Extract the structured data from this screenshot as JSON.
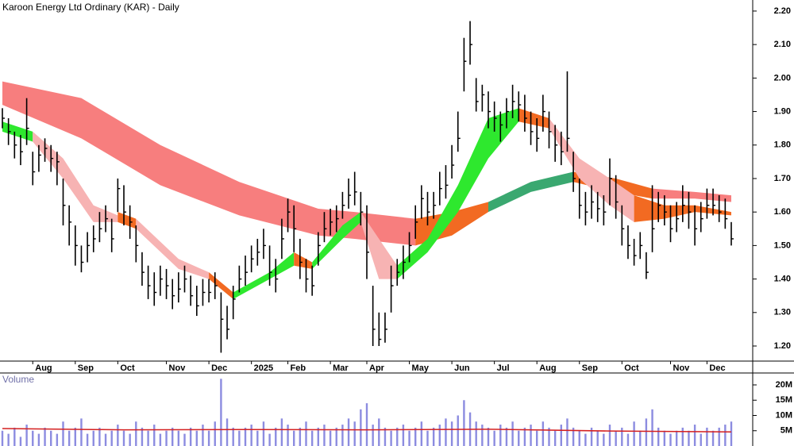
{
  "chart_data": {
    "type": "ohlc",
    "title": "Karoon Energy Ltd Ordinary (KAR) - Daily",
    "categories": [
      null,
      null,
      null,
      null,
      null,
      "Aug",
      null,
      null,
      null,
      null,
      null,
      null,
      "Sep",
      null,
      null,
      null,
      null,
      null,
      null,
      "Oct",
      null,
      null,
      null,
      null,
      null,
      null,
      null,
      "Nov",
      null,
      null,
      null,
      null,
      null,
      null,
      "Dec",
      null,
      null,
      null,
      null,
      null,
      null,
      "2025",
      null,
      null,
      null,
      null,
      null,
      "Feb",
      null,
      null,
      null,
      null,
      null,
      null,
      "Mar",
      null,
      null,
      null,
      null,
      null,
      "Apr",
      null,
      null,
      null,
      null,
      null,
      null,
      "May",
      null,
      null,
      null,
      null,
      null,
      null,
      "Jun",
      null,
      null,
      null,
      null,
      null,
      null,
      "Jul",
      null,
      null,
      null,
      null,
      null,
      null,
      "Aug",
      null,
      null,
      null,
      null,
      null,
      null,
      "Sep",
      null,
      null,
      null,
      null,
      null,
      null,
      "Oct",
      null,
      null,
      null,
      null,
      null,
      null,
      null,
      "Nov",
      null,
      null,
      null,
      null,
      null,
      "Dec",
      null,
      null,
      null,
      null
    ],
    "close": [
      1.88,
      1.84,
      1.8,
      1.78,
      1.85,
      1.72,
      1.77,
      1.79,
      1.76,
      1.75,
      1.62,
      1.57,
      1.5,
      1.45,
      1.5,
      1.52,
      1.55,
      1.58,
      1.52,
      1.67,
      1.6,
      1.57,
      1.5,
      1.42,
      1.38,
      1.36,
      1.4,
      1.38,
      1.35,
      1.37,
      1.4,
      1.35,
      1.32,
      1.36,
      1.36,
      1.38,
      1.28,
      1.25,
      1.34,
      1.4,
      1.42,
      1.46,
      1.48,
      1.5,
      1.42,
      1.4,
      1.52,
      1.6,
      1.55,
      1.45,
      1.4,
      1.38,
      1.5,
      1.55,
      1.57,
      1.58,
      1.62,
      1.65,
      1.66,
      1.6,
      1.48,
      1.25,
      1.22,
      1.25,
      1.38,
      1.42,
      1.45,
      1.5,
      1.57,
      1.64,
      1.6,
      1.62,
      1.67,
      1.68,
      1.74,
      1.82,
      2.05,
      2.1,
      1.93,
      1.95,
      1.9,
      1.88,
      1.86,
      1.9,
      1.93,
      1.92,
      1.88,
      1.84,
      1.82,
      1.9,
      1.84,
      1.8,
      1.78,
      1.82,
      1.7,
      1.62,
      1.6,
      1.63,
      1.61,
      1.6,
      1.7,
      1.63,
      1.55,
      1.5,
      1.47,
      1.5,
      1.42,
      1.55,
      1.62,
      1.6,
      1.55,
      1.58,
      1.62,
      1.6,
      1.55,
      1.58,
      1.62,
      1.62,
      1.6,
      1.58,
      1.52
    ],
    "high": [
      1.91,
      1.88,
      1.84,
      1.83,
      1.94,
      1.78,
      1.8,
      1.82,
      1.8,
      1.78,
      1.7,
      1.62,
      1.56,
      1.5,
      1.54,
      1.56,
      1.6,
      1.62,
      1.58,
      1.7,
      1.68,
      1.62,
      1.56,
      1.48,
      1.44,
      1.42,
      1.44,
      1.43,
      1.4,
      1.42,
      1.44,
      1.41,
      1.38,
      1.4,
      1.4,
      1.42,
      1.36,
      1.32,
      1.38,
      1.44,
      1.47,
      1.5,
      1.52,
      1.55,
      1.5,
      1.46,
      1.58,
      1.64,
      1.62,
      1.52,
      1.46,
      1.44,
      1.54,
      1.6,
      1.61,
      1.62,
      1.66,
      1.7,
      1.72,
      1.66,
      1.62,
      1.38,
      1.3,
      1.3,
      1.44,
      1.46,
      1.5,
      1.54,
      1.62,
      1.68,
      1.66,
      1.66,
      1.72,
      1.74,
      1.8,
      1.9,
      2.12,
      2.17,
      2.0,
      1.98,
      1.96,
      1.93,
      1.9,
      1.94,
      1.98,
      1.96,
      1.95,
      1.9,
      1.88,
      1.95,
      1.9,
      1.86,
      1.84,
      2.02,
      1.78,
      1.7,
      1.66,
      1.68,
      1.66,
      1.65,
      1.76,
      1.71,
      1.62,
      1.56,
      1.52,
      1.54,
      1.48,
      1.68,
      1.66,
      1.65,
      1.62,
      1.63,
      1.68,
      1.66,
      1.62,
      1.63,
      1.67,
      1.67,
      1.65,
      1.64,
      1.57
    ],
    "low": [
      1.85,
      1.8,
      1.76,
      1.74,
      1.8,
      1.68,
      1.72,
      1.75,
      1.72,
      1.68,
      1.56,
      1.5,
      1.44,
      1.42,
      1.45,
      1.48,
      1.51,
      1.54,
      1.48,
      1.6,
      1.56,
      1.52,
      1.45,
      1.38,
      1.34,
      1.32,
      1.35,
      1.34,
      1.31,
      1.33,
      1.36,
      1.32,
      1.29,
      1.32,
      1.33,
      1.34,
      1.18,
      1.22,
      1.28,
      1.36,
      1.38,
      1.42,
      1.44,
      1.46,
      1.38,
      1.36,
      1.46,
      1.54,
      1.48,
      1.4,
      1.36,
      1.35,
      1.44,
      1.51,
      1.53,
      1.54,
      1.58,
      1.61,
      1.62,
      1.56,
      1.4,
      1.2,
      1.2,
      1.21,
      1.3,
      1.38,
      1.4,
      1.45,
      1.52,
      1.58,
      1.56,
      1.58,
      1.62,
      1.64,
      1.7,
      1.78,
      1.96,
      2.04,
      1.9,
      1.9,
      1.85,
      1.84,
      1.81,
      1.85,
      1.88,
      1.87,
      1.84,
      1.8,
      1.78,
      1.84,
      1.79,
      1.75,
      1.74,
      1.78,
      1.66,
      1.58,
      1.56,
      1.58,
      1.57,
      1.56,
      1.62,
      1.58,
      1.5,
      1.46,
      1.44,
      1.46,
      1.4,
      1.48,
      1.57,
      1.56,
      1.51,
      1.54,
      1.57,
      1.55,
      1.5,
      1.54,
      1.58,
      1.59,
      1.57,
      1.55,
      1.5
    ],
    "color": "#000000",
    "ylim": [
      1.155,
      2.233
    ],
    "yticks": [
      {
        "value": 1.2,
        "label": "1.20"
      },
      {
        "value": 1.3,
        "label": "1.30"
      },
      {
        "value": 1.4,
        "label": "1.40"
      },
      {
        "value": 1.5,
        "label": "1.50"
      },
      {
        "value": 1.6,
        "label": "1.60"
      },
      {
        "value": 1.7,
        "label": "1.70"
      },
      {
        "value": 1.8,
        "label": "1.80"
      },
      {
        "value": 1.9,
        "label": "1.90"
      },
      {
        "value": 2.0,
        "label": "2.00"
      },
      {
        "value": 2.1,
        "label": "2.10"
      },
      {
        "value": 2.2,
        "label": "2.20"
      }
    ],
    "bands": [
      {
        "color": "#f77e7e",
        "x": [
          0,
          13,
          26,
          39,
          52,
          58,
          68
        ],
        "upper": [
          1.99,
          1.94,
          1.8,
          1.69,
          1.61,
          1.6,
          1.58
        ],
        "lower": [
          1.92,
          1.82,
          1.68,
          1.59,
          1.53,
          1.52,
          1.5
        ]
      },
      {
        "color": "#f26a22",
        "x": [
          68,
          74,
          80
        ],
        "upper": [
          1.58,
          1.6,
          1.63
        ],
        "lower": [
          1.5,
          1.53,
          1.6
        ]
      },
      {
        "color": "#3aa870",
        "x": [
          80,
          87,
          94
        ],
        "upper": [
          1.63,
          1.69,
          1.72
        ],
        "lower": [
          1.6,
          1.66,
          1.69
        ]
      },
      {
        "color": "#f26a22",
        "x": [
          94,
          101,
          107
        ],
        "upper": [
          1.72,
          1.7,
          1.67
        ],
        "lower": [
          1.69,
          1.66,
          1.64
        ]
      },
      {
        "color": "#f77e7e",
        "x": [
          107,
          114,
          120
        ],
        "upper": [
          1.67,
          1.66,
          1.65
        ],
        "lower": [
          1.64,
          1.64,
          1.63
        ]
      },
      {
        "color": "#2ee82e",
        "x": [
          0,
          5
        ],
        "upper": [
          1.87,
          1.84
        ],
        "lower": [
          1.84,
          1.81
        ]
      },
      {
        "color": "#f7b3b3",
        "x": [
          5,
          10,
          15,
          19
        ],
        "upper": [
          1.84,
          1.76,
          1.62,
          1.59
        ],
        "lower": [
          1.81,
          1.7,
          1.57,
          1.57
        ]
      },
      {
        "color": "#f26a22",
        "x": [
          19,
          22
        ],
        "upper": [
          1.6,
          1.58
        ],
        "lower": [
          1.57,
          1.55
        ]
      },
      {
        "color": "#f7b3b3",
        "x": [
          22,
          29,
          34
        ],
        "upper": [
          1.58,
          1.46,
          1.42
        ],
        "lower": [
          1.55,
          1.43,
          1.4
        ]
      },
      {
        "color": "#f26a22",
        "x": [
          34,
          38
        ],
        "upper": [
          1.42,
          1.36
        ],
        "lower": [
          1.4,
          1.34
        ]
      },
      {
        "color": "#2ee82e",
        "x": [
          38,
          44,
          48
        ],
        "upper": [
          1.36,
          1.42,
          1.48
        ],
        "lower": [
          1.34,
          1.4,
          1.44
        ]
      },
      {
        "color": "#f26a22",
        "x": [
          48,
          51
        ],
        "upper": [
          1.48,
          1.45
        ],
        "lower": [
          1.44,
          1.43
        ]
      },
      {
        "color": "#2ee82e",
        "x": [
          51,
          56,
          59
        ],
        "upper": [
          1.45,
          1.56,
          1.6
        ],
        "lower": [
          1.43,
          1.52,
          1.57
        ]
      },
      {
        "color": "#f7b3b3",
        "x": [
          59,
          62,
          65
        ],
        "upper": [
          1.6,
          1.52,
          1.44
        ],
        "lower": [
          1.57,
          1.4,
          1.4
        ]
      },
      {
        "color": "#2ee82e",
        "x": [
          65,
          70,
          75,
          80,
          85
        ],
        "upper": [
          1.44,
          1.52,
          1.68,
          1.88,
          1.91
        ],
        "lower": [
          1.4,
          1.48,
          1.6,
          1.76,
          1.87
        ]
      },
      {
        "color": "#f26a22",
        "x": [
          85,
          90
        ],
        "upper": [
          1.91,
          1.88
        ],
        "lower": [
          1.87,
          1.85
        ]
      },
      {
        "color": "#f7b3b3",
        "x": [
          90,
          95,
          100,
          104
        ],
        "upper": [
          1.88,
          1.76,
          1.7,
          1.65
        ],
        "lower": [
          1.85,
          1.7,
          1.62,
          1.57
        ]
      },
      {
        "color": "#f26a22",
        "x": [
          104,
          109,
          114,
          120
        ],
        "upper": [
          1.65,
          1.62,
          1.62,
          1.6
        ],
        "lower": [
          1.57,
          1.58,
          1.6,
          1.59
        ]
      }
    ],
    "volume": {
      "title": "Volume",
      "color": "#8c8ce0",
      "values": [
        5,
        4,
        6,
        3,
        7,
        5,
        4,
        6,
        5,
        4,
        8,
        5,
        6,
        9,
        4,
        5,
        6,
        4,
        5,
        7,
        5,
        4,
        8,
        6,
        5,
        7,
        4,
        5,
        6,
        5,
        4,
        6,
        5,
        7,
        5,
        8,
        22,
        9,
        6,
        5,
        6,
        7,
        5,
        8,
        4,
        6,
        9,
        7,
        5,
        6,
        8,
        5,
        6,
        7,
        5,
        6,
        7,
        9,
        8,
        12,
        14,
        7,
        9,
        6,
        5,
        6,
        7,
        5,
        6,
        8,
        5,
        6,
        7,
        9,
        8,
        10,
        15,
        11,
        8,
        7,
        6,
        5,
        7,
        6,
        8,
        5,
        6,
        7,
        5,
        8,
        6,
        5,
        7,
        9,
        6,
        5,
        4,
        6,
        5,
        4,
        7,
        5,
        6,
        4,
        8,
        5,
        9,
        12,
        6,
        5,
        4,
        5,
        6,
        5,
        7,
        4,
        6,
        5,
        6,
        7,
        8
      ],
      "ylim": [
        0,
        23.9
      ],
      "yticks": [
        {
          "value": 5,
          "label": "5M"
        },
        {
          "value": 10,
          "label": "10M"
        },
        {
          "value": 15,
          "label": "15M"
        },
        {
          "value": 20,
          "label": "20M"
        }
      ],
      "average": {
        "color": "#d42020",
        "x": [
          0,
          20,
          40,
          60,
          80,
          100,
          120
        ],
        "values": [
          5.7,
          5.3,
          5.4,
          5.3,
          5.5,
          4.9,
          4.6
        ]
      }
    }
  }
}
